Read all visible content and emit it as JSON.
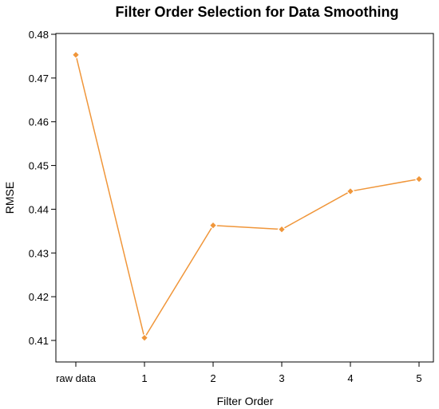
{
  "chart_data": {
    "type": "line",
    "title": "Filter Order Selection for Data Smoothing",
    "xlabel": "Filter Order",
    "ylabel": "RMSE",
    "categories": [
      "raw data",
      "1",
      "2",
      "3",
      "4",
      "5"
    ],
    "series": [
      {
        "values": [
          0.4753,
          0.4106,
          0.4363,
          0.4354,
          0.4441,
          0.4469
        ],
        "color": "#f0963a",
        "marker": "diamond"
      }
    ],
    "ylim": [
      0.405,
      0.48
    ],
    "yticks": [
      0.41,
      0.42,
      0.43,
      0.44,
      0.45,
      0.46,
      0.47,
      0.48
    ],
    "grid": false,
    "legend": "none",
    "box": true
  }
}
